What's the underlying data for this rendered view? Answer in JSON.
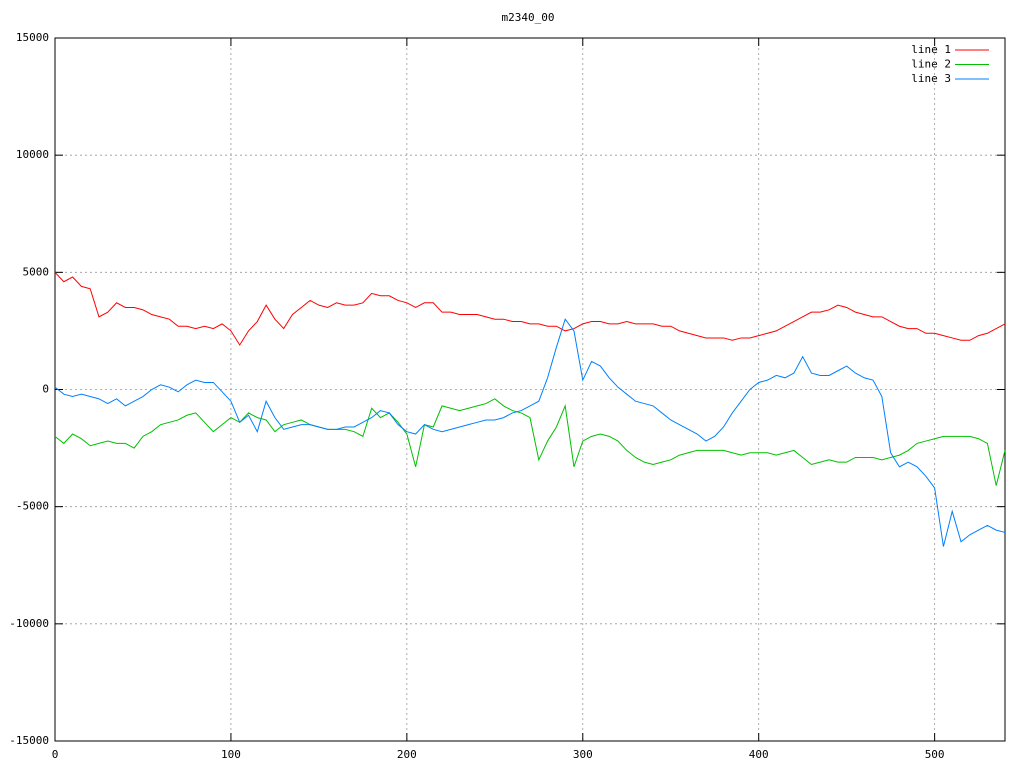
{
  "chart_data": {
    "type": "line",
    "title": "m2340_00",
    "x": [
      0,
      5,
      10,
      15,
      20,
      25,
      30,
      35,
      40,
      45,
      50,
      55,
      60,
      65,
      70,
      75,
      80,
      85,
      90,
      95,
      100,
      105,
      110,
      115,
      120,
      125,
      130,
      135,
      140,
      145,
      150,
      155,
      160,
      165,
      170,
      175,
      180,
      185,
      190,
      195,
      200,
      205,
      210,
      215,
      220,
      225,
      230,
      235,
      240,
      245,
      250,
      255,
      260,
      265,
      270,
      275,
      280,
      285,
      290,
      295,
      300,
      305,
      310,
      315,
      320,
      325,
      330,
      335,
      340,
      345,
      350,
      355,
      360,
      365,
      370,
      375,
      380,
      385,
      390,
      395,
      400,
      405,
      410,
      415,
      420,
      425,
      430,
      435,
      440,
      445,
      450,
      455,
      460,
      465,
      470,
      475,
      480,
      485,
      490,
      495,
      500,
      505,
      510,
      515,
      520,
      525,
      530,
      535,
      540
    ],
    "series": [
      {
        "name": "line 1",
        "color": "#ff0000",
        "values": [
          5000,
          4600,
          4800,
          4400,
          4300,
          3100,
          3300,
          3700,
          3500,
          3500,
          3400,
          3200,
          3100,
          3000,
          2700,
          2700,
          2600,
          2700,
          2600,
          2800,
          2500,
          1900,
          2500,
          2900,
          3600,
          3000,
          2600,
          3200,
          3500,
          3800,
          3600,
          3500,
          3700,
          3600,
          3600,
          3700,
          4100,
          4000,
          4000,
          3800,
          3700,
          3500,
          3700,
          3700,
          3300,
          3300,
          3200,
          3200,
          3200,
          3100,
          3000,
          3000,
          2900,
          2900,
          2800,
          2800,
          2700,
          2700,
          2500,
          2600,
          2800,
          2900,
          2900,
          2800,
          2800,
          2900,
          2800,
          2800,
          2800,
          2700,
          2700,
          2500,
          2400,
          2300,
          2200,
          2200,
          2200,
          2100,
          2200,
          2200,
          2300,
          2400,
          2500,
          2700,
          2900,
          3100,
          3300,
          3300,
          3400,
          3600,
          3500,
          3300,
          3200,
          3100,
          3100,
          2900,
          2700,
          2600,
          2600,
          2400,
          2400,
          2300,
          2200,
          2100,
          2100,
          2300,
          2400,
          2600,
          2800
        ]
      },
      {
        "name": "line 2",
        "color": "#00c000",
        "values": [
          -2000,
          -2300,
          -1900,
          -2100,
          -2400,
          -2300,
          -2200,
          -2300,
          -2300,
          -2500,
          -2000,
          -1800,
          -1500,
          -1400,
          -1300,
          -1100,
          -1000,
          -1400,
          -1800,
          -1500,
          -1200,
          -1400,
          -1000,
          -1200,
          -1300,
          -1800,
          -1500,
          -1400,
          -1300,
          -1500,
          -1600,
          -1700,
          -1700,
          -1700,
          -1800,
          -2000,
          -800,
          -1200,
          -1000,
          -1400,
          -1900,
          -3300,
          -1500,
          -1600,
          -700,
          -800,
          -900,
          -800,
          -700,
          -600,
          -400,
          -700,
          -900,
          -1000,
          -1200,
          -3000,
          -2200,
          -1600,
          -700,
          -3300,
          -2200,
          -2000,
          -1900,
          -2000,
          -2200,
          -2600,
          -2900,
          -3100,
          -3200,
          -3100,
          -3000,
          -2800,
          -2700,
          -2600,
          -2600,
          -2600,
          -2600,
          -2700,
          -2800,
          -2700,
          -2700,
          -2700,
          -2800,
          -2700,
          -2600,
          -2900,
          -3200,
          -3100,
          -3000,
          -3100,
          -3100,
          -2900,
          -2900,
          -2900,
          -3000,
          -2900,
          -2800,
          -2600,
          -2300,
          -2200,
          -2100,
          -2000,
          -2000,
          -2000,
          -2000,
          -2100,
          -2300,
          -4100,
          -2600
        ]
      },
      {
        "name": "line 3",
        "color": "#0080ff",
        "values": [
          100,
          -200,
          -300,
          -200,
          -300,
          -400,
          -600,
          -400,
          -700,
          -500,
          -300,
          0,
          200,
          100,
          -100,
          200,
          400,
          300,
          300,
          -100,
          -500,
          -1400,
          -1100,
          -1800,
          -500,
          -1200,
          -1700,
          -1600,
          -1500,
          -1500,
          -1600,
          -1700,
          -1700,
          -1600,
          -1600,
          -1400,
          -1200,
          -900,
          -1000,
          -1500,
          -1800,
          -1900,
          -1500,
          -1700,
          -1800,
          -1700,
          -1600,
          -1500,
          -1400,
          -1300,
          -1300,
          -1200,
          -1000,
          -900,
          -700,
          -500,
          500,
          1800,
          3000,
          2500,
          400,
          1200,
          1000,
          500,
          100,
          -200,
          -500,
          -600,
          -700,
          -1000,
          -1300,
          -1500,
          -1700,
          -1900,
          -2200,
          -2000,
          -1600,
          -1000,
          -500,
          0,
          300,
          400,
          600,
          500,
          700,
          1400,
          700,
          600,
          600,
          800,
          1000,
          700,
          500,
          400,
          -300,
          -2700,
          -3300,
          -3100,
          -3300,
          -3700,
          -4200,
          -6700,
          -5200,
          -6500,
          -6200,
          -6000,
          -5800,
          -6000,
          -6100
        ]
      }
    ],
    "xlim": [
      0,
      540
    ],
    "ylim": [
      -15000,
      15000
    ],
    "xticks": [
      0,
      100,
      200,
      300,
      400,
      500
    ],
    "yticks": [
      -15000,
      -10000,
      -5000,
      0,
      5000,
      10000,
      15000
    ],
    "grid": true,
    "legend": "top-right"
  }
}
